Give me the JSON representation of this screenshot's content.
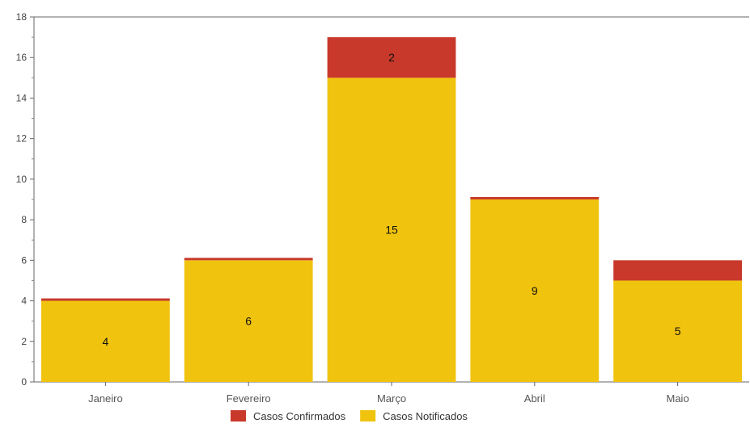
{
  "chart_data": {
    "type": "bar",
    "stacked": true,
    "categories": [
      "Janeiro",
      "Fevereiro",
      "Março",
      "Abril",
      "Maio"
    ],
    "series": [
      {
        "name": "Casos Notificados",
        "color": "#f0c30f",
        "values": [
          4,
          6,
          15,
          9,
          5
        ],
        "labels": [
          "4",
          "6",
          "15",
          "9",
          "5"
        ]
      },
      {
        "name": "Casos Confirmados",
        "color": "#c8392b",
        "values": [
          0,
          0,
          2,
          0,
          1
        ],
        "labels": [
          "",
          "",
          "2",
          "",
          ""
        ]
      }
    ],
    "legend_order": [
      "Casos Confirmados",
      "Casos Notificados"
    ],
    "y_ticks": [
      "0",
      "2",
      "4",
      "6",
      "8",
      "10",
      "12",
      "14",
      "16",
      "18"
    ],
    "ylim": [
      0,
      18
    ],
    "title": "",
    "xlabel": "",
    "ylabel": "",
    "grid": false,
    "legend_position": "bottom-center"
  }
}
